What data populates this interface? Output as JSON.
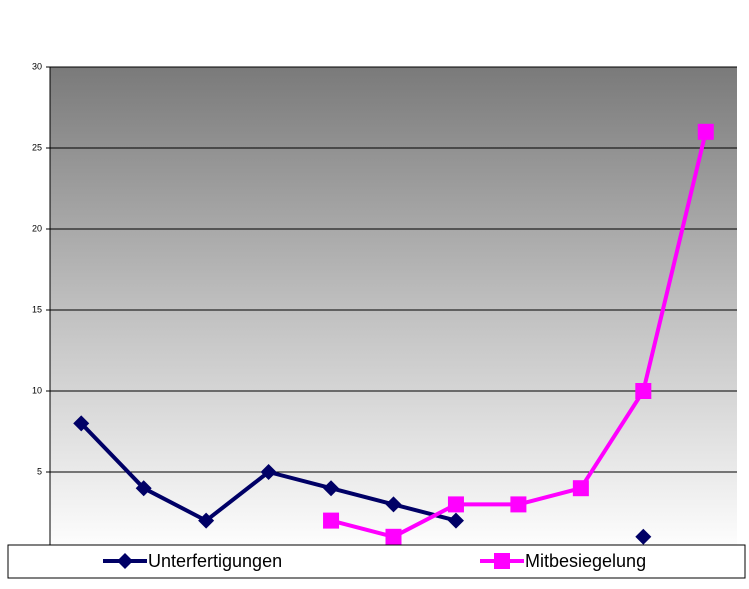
{
  "chart_data": {
    "type": "line",
    "categories": [
      null,
      null,
      null,
      null,
      null,
      null,
      null,
      null,
      null,
      null,
      null
    ],
    "series": [
      {
        "name": "Unterfertigungen",
        "color": "#000066",
        "marker": "diamond",
        "values": [
          8,
          4,
          2,
          5,
          4,
          3,
          2,
          null,
          null,
          1,
          null
        ]
      },
      {
        "name": "Mitbesiegelung",
        "color": "#ff00ff",
        "marker": "square",
        "values": [
          null,
          null,
          null,
          null,
          2,
          1,
          3,
          3,
          4,
          10,
          26
        ]
      }
    ],
    "ylim": [
      0,
      30
    ],
    "yticks": [
      5,
      10,
      15,
      20,
      25,
      30
    ],
    "grid": true,
    "legend": "bottom"
  }
}
